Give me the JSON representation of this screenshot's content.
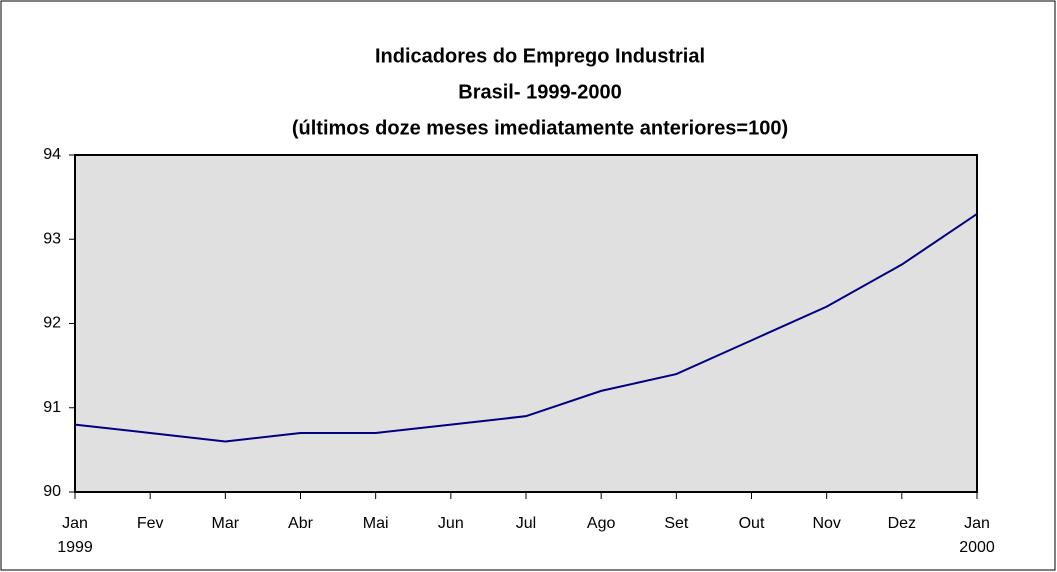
{
  "chart_data": {
    "type": "line",
    "title": [
      "Indicadores do Emprego Industrial",
      "Brasil- 1999-2000",
      "(últimos doze meses imediatamente anteriores=100)"
    ],
    "categories": [
      "Jan\n1999",
      "Fev",
      "Mar",
      "Abr",
      "Mai",
      "Jun",
      "Jul",
      "Ago",
      "Set",
      "Out",
      "Nov",
      "Dez",
      "Jan\n2000"
    ],
    "series": [
      {
        "name": "Indicadores do Emprego Industrial",
        "color": "#000080",
        "values": [
          90.8,
          90.7,
          90.6,
          90.7,
          90.7,
          90.8,
          90.9,
          91.2,
          91.4,
          91.8,
          92.2,
          92.7,
          93.3
        ]
      }
    ],
    "ylim": [
      90,
      94
    ],
    "yticks": [
      90,
      91,
      92,
      93,
      94
    ],
    "grid": false
  }
}
